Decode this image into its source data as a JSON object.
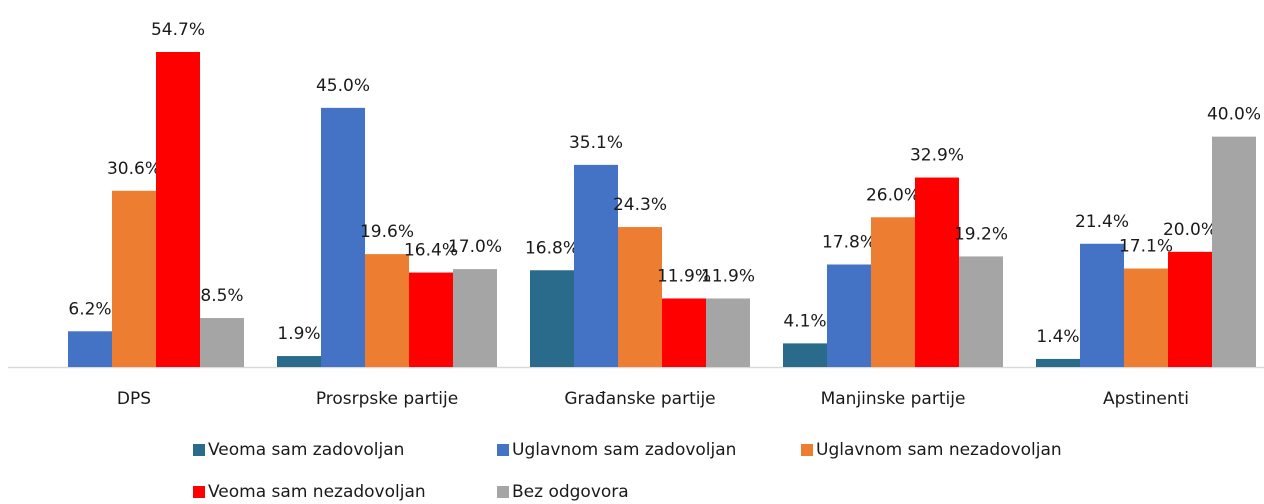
{
  "chart_data": {
    "type": "bar",
    "categories": [
      "DPS",
      "Prosrpske partije",
      "Građanske partije",
      "Manjinske partije",
      "Apstinenti"
    ],
    "series": [
      {
        "name": "Veoma sam zadovoljan",
        "color": "#2a6a8b",
        "values": [
          null,
          1.9,
          16.8,
          4.1,
          1.4
        ],
        "value_labels": [
          null,
          "1.9%",
          "16.8%",
          "4.1%",
          "1.4%"
        ]
      },
      {
        "name": "Uglavnom sam zadovoljan",
        "color": "#4472c4",
        "values": [
          6.2,
          45.0,
          35.1,
          17.8,
          21.4
        ],
        "value_labels": [
          "6.2%",
          "45.0%",
          "35.1%",
          "17.8%",
          "21.4%"
        ]
      },
      {
        "name": "Uglavnom sam nezadovoljan",
        "color": "#ed7d31",
        "values": [
          30.6,
          19.6,
          24.3,
          26.0,
          17.1
        ],
        "value_labels": [
          "30.6%",
          "19.6%",
          "24.3%",
          "26.0%",
          "17.1%"
        ]
      },
      {
        "name": "Veoma sam nezadovoljan",
        "color": "#ff0000",
        "values": [
          54.7,
          16.4,
          11.9,
          32.9,
          20.0
        ],
        "value_labels": [
          "54.7%",
          "16.4%",
          "11.9%",
          "32.9%",
          "20.0%"
        ]
      },
      {
        "name": "Bez odgovora",
        "color": "#a5a5a5",
        "values": [
          8.5,
          17.0,
          11.9,
          19.2,
          40.0
        ],
        "value_labels": [
          "8.5%",
          "17.0%",
          "11.9%",
          "19.2%",
          "40.0%"
        ]
      }
    ]
  }
}
